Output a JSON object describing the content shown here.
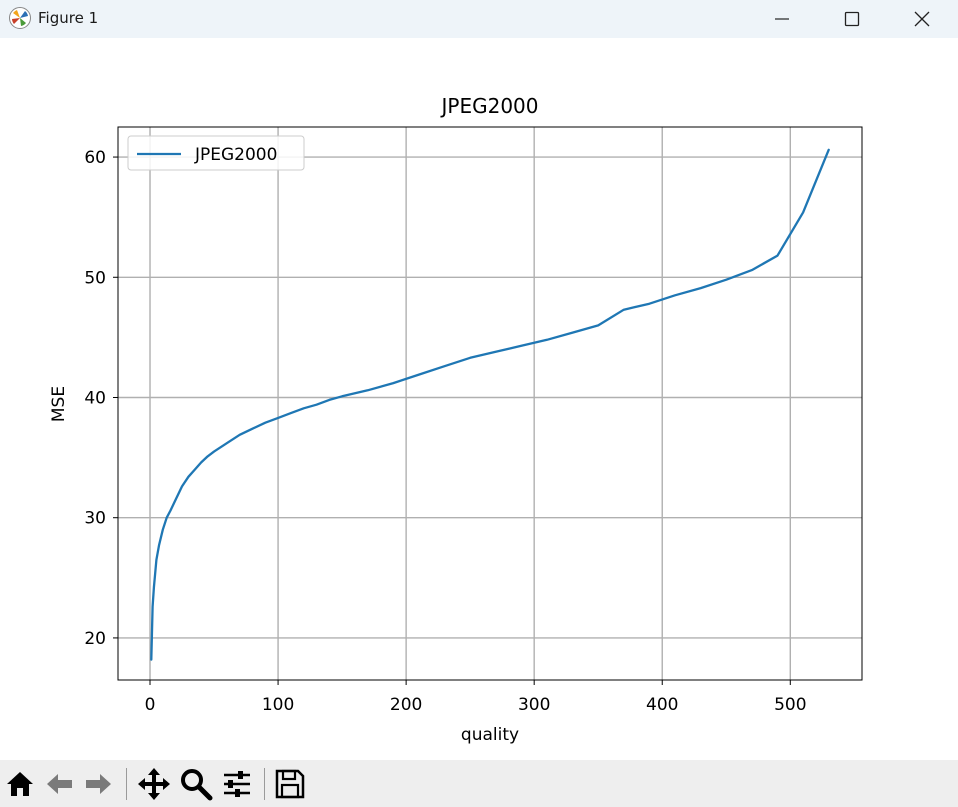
{
  "window": {
    "title": "Figure 1"
  },
  "colors": {
    "line": "#1f77b4",
    "grid": "#b0b0b0",
    "titlebar": "#eef4f9",
    "toolbar": "#eeeeee"
  },
  "toolbar": {
    "icons": [
      "home-icon",
      "back-icon",
      "forward-icon",
      "pan-icon",
      "zoom-icon",
      "configure-subplots-icon",
      "save-icon"
    ]
  },
  "chart_data": {
    "type": "line",
    "title": "JPEG2000",
    "xlabel": "quality",
    "ylabel": "MSE",
    "xlim": [
      -25,
      556
    ],
    "ylim": [
      16.5,
      62.5
    ],
    "xticks": [
      0,
      100,
      200,
      300,
      400,
      500
    ],
    "yticks": [
      20,
      30,
      40,
      50,
      60
    ],
    "grid": true,
    "legend": {
      "position": "upper-left",
      "entries": [
        "JPEG2000"
      ]
    },
    "series": [
      {
        "name": "JPEG2000",
        "x": [
          1,
          2,
          3,
          4,
          5,
          7,
          10,
          13,
          16,
          20,
          25,
          30,
          35,
          40,
          45,
          50,
          60,
          70,
          80,
          90,
          100,
          110,
          120,
          130,
          140,
          150,
          170,
          190,
          210,
          230,
          250,
          270,
          290,
          310,
          330,
          350,
          370,
          390,
          410,
          430,
          450,
          470,
          490,
          510,
          530
        ],
        "y": [
          18.2,
          22.6,
          24.2,
          25.3,
          26.5,
          27.7,
          29.0,
          30.0,
          30.6,
          31.5,
          32.6,
          33.4,
          34.0,
          34.6,
          35.1,
          35.5,
          36.2,
          36.9,
          37.4,
          37.9,
          38.3,
          38.7,
          39.1,
          39.4,
          39.8,
          40.1,
          40.6,
          41.2,
          41.9,
          42.6,
          43.3,
          43.8,
          44.3,
          44.8,
          45.4,
          46.0,
          47.3,
          47.8,
          48.5,
          49.1,
          49.8,
          50.6,
          51.8,
          55.4,
          60.6
        ]
      }
    ]
  }
}
